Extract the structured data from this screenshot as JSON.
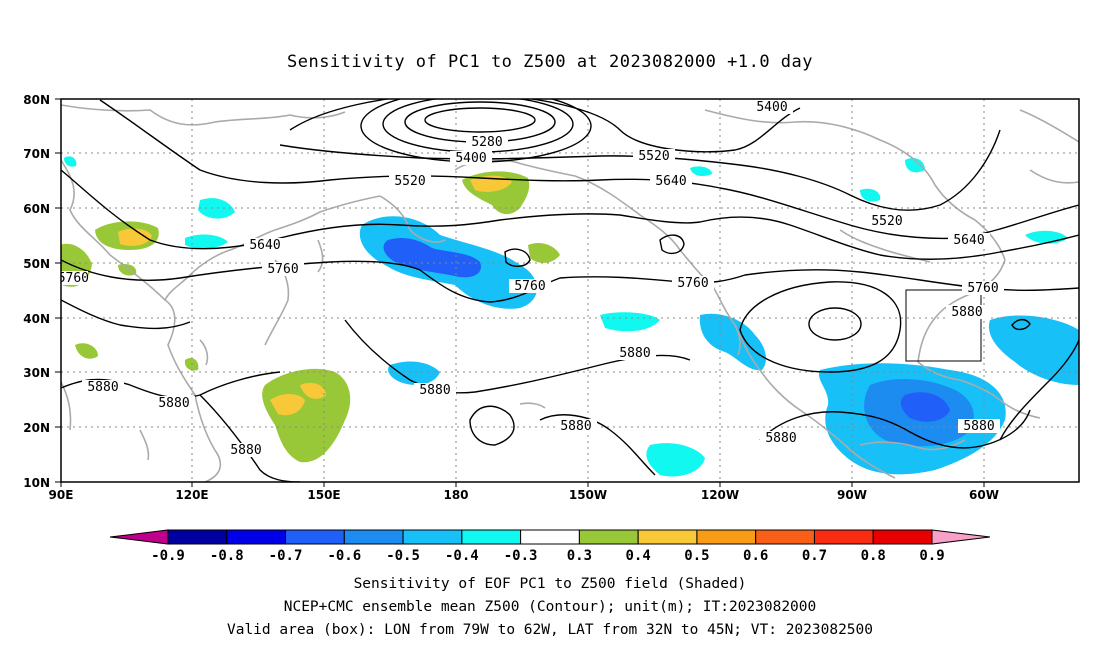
{
  "title": "Sensitivity of PC1 to Z500 at 2023082000 +1.0 day",
  "map": {
    "lat_labels": [
      "80N",
      "70N",
      "60N",
      "50N",
      "40N",
      "30N",
      "20N",
      "10N"
    ],
    "lon_labels": [
      "90E",
      "120E",
      "150E",
      "180",
      "150W",
      "120W",
      "90W",
      "60W"
    ],
    "valid_box": {
      "lon": [
        "79W",
        "62W"
      ],
      "lat": [
        "32N",
        "45N"
      ]
    }
  },
  "contour_labels": [
    "5400",
    "5280",
    "5400",
    "5520",
    "5520",
    "5640",
    "5520",
    "5640",
    "5640",
    "5760",
    "5760",
    "5760",
    "5760",
    "5760",
    "5880",
    "5880",
    "5880",
    "5880",
    "5880",
    "5880",
    "5880",
    "5880",
    "5880"
  ],
  "colorbar": {
    "labels": [
      "-0.9",
      "-0.8",
      "-0.7",
      "-0.6",
      "-0.5",
      "-0.4",
      "-0.3",
      "0.3",
      "0.4",
      "0.5",
      "0.6",
      "0.7",
      "0.8",
      "0.9"
    ],
    "colors": [
      "#c0008c",
      "#0000a0",
      "#0000e8",
      "#2060f8",
      "#1c8cf0",
      "#18c0f8",
      "#10f8f0",
      "#ffffff",
      "#98c838",
      "#f8c838",
      "#f89c18",
      "#f86018",
      "#f82c10",
      "#e80000",
      "#f8a0c8"
    ]
  },
  "captions": {
    "line1": "Sensitivity of EOF PC1 to Z500 field (Shaded)",
    "line2": "NCEP+CMC ensemble mean Z500 (Contour); unit(m); IT:2023082000",
    "line3": "Valid area (box): LON from 79W to 62W, LAT from 32N to 45N; VT: 2023082500"
  }
}
